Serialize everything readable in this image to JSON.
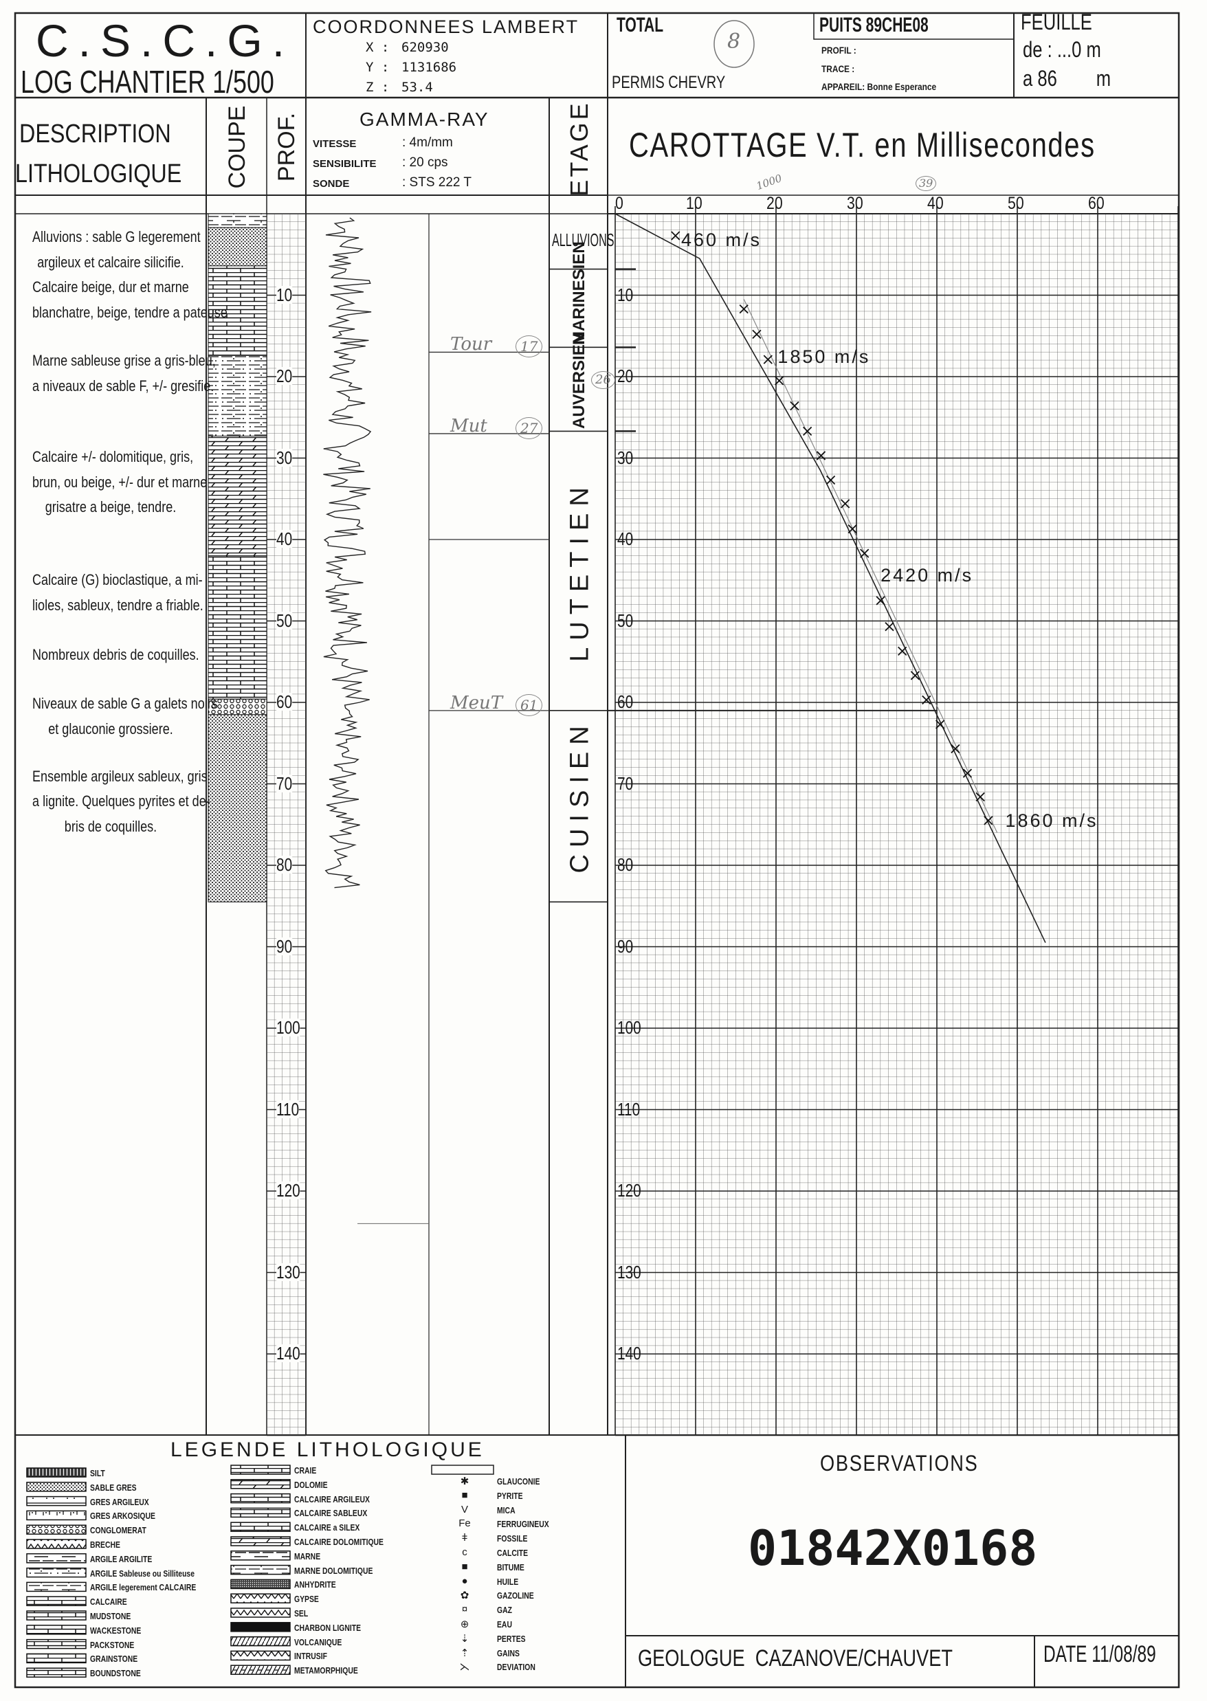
{
  "header": {
    "org": "C.S.C.G.",
    "log_title": "LOG CHANTIER 1/500",
    "coords_title": "COORDONNEES LAMBERT",
    "coords": [
      {
        "label": "X :",
        "value": "620930"
      },
      {
        "label": "Y :",
        "value": "1131686"
      },
      {
        "label": "Z :",
        "value": "53.4"
      }
    ],
    "company": "TOTAL",
    "permis": "PERMIS CHEVRY",
    "handwritten_number": "8",
    "puits": "PUITS 89CHE08",
    "profil": "PROFIL  :",
    "trace": "TRACE  :",
    "appareil": "APPAREIL: Bonne Esperance",
    "feuille": "FEUILLE",
    "feuille_de": "de : ...0 m",
    "feuille_a": "a 86        m"
  },
  "columns": {
    "description_1": "DESCRIPTION",
    "description_2": "LITHOLOGIQUE",
    "coupe": "COUPE",
    "prof": "PROF.",
    "gamma_title": "GAMMA-RAY",
    "gamma_params": [
      {
        "label": "VITESSE",
        "value": ": 4m/mm"
      },
      {
        "label": "SENSIBILITE",
        "value": ": 20 cps"
      },
      {
        "label": "SONDE",
        "value": ": STS 222  T"
      }
    ],
    "etage": "ETAGE",
    "chart_title": "CAROTTAGE V.T. en Millisecondes"
  },
  "descriptions": [
    {
      "depth": 2.8,
      "lines": [
        "Alluvions : sable G legerement",
        "argileux et calcaire silicifie.",
        "Calcaire beige, dur et marne",
        "blanchatre, beige, tendre a pateuse"
      ]
    },
    {
      "depth": 18.0,
      "lines": [
        "Marne sableuse grise a gris-bleu,",
        "a niveaux de sable F, +/- gresifie."
      ]
    },
    {
      "depth": 29.8,
      "lines": [
        "Calcaire +/- dolomitique, gris,",
        "brun, ou beige, +/- dur et marne",
        "grisatre a beige, tendre."
      ]
    },
    {
      "depth": 44.9,
      "lines": [
        "Calcaire (G) bioclastique, a mi-",
        "lioles, sableux, tendre a friable."
      ]
    },
    {
      "depth": 54.1,
      "lines": [
        "Nombreux debris de coquilles."
      ]
    },
    {
      "depth": 60.1,
      "lines": [
        "Niveaux de sable G a galets noirs",
        "et glauconie grossiere."
      ]
    },
    {
      "depth": 69.0,
      "lines": [
        "Ensemble argileux sableux, gris",
        "a lignite. Quelques pyrites et de-",
        "bris de coquilles."
      ]
    }
  ],
  "coupe": [
    {
      "top": 0,
      "base": 1.7,
      "lithology": "ARGILE legerement CALCAIRE"
    },
    {
      "top": 1.7,
      "base": 6.4,
      "lithology": "SABLE GRES"
    },
    {
      "top": 6.4,
      "base": 17.4,
      "lithology": "CALCAIRE"
    },
    {
      "top": 17.4,
      "base": 27.3,
      "lithology": "ARGILE Sableuse ou Silliteuse"
    },
    {
      "top": 27.3,
      "base": 42,
      "lithology": "CALCAIRE DOLOMITIQUE"
    },
    {
      "top": 42,
      "base": 59.6,
      "lithology": "CALCAIRE SABLEUX"
    },
    {
      "top": 59.6,
      "base": 61.5,
      "lithology": "CONGLOMERAT"
    },
    {
      "top": 61.5,
      "base": 84.5,
      "lithology": "SABLE GRES"
    }
  ],
  "etages": [
    {
      "name": "ALLUVIONS",
      "top": 0,
      "base": 6.8
    },
    {
      "name": "MARINESIEN",
      "top": 6.8,
      "base": 16.4
    },
    {
      "name": "AUVERSIEN",
      "top": 16.4,
      "base": 26.7
    },
    {
      "name": "LUTETIEN",
      "top": 26.7,
      "base": 61
    },
    {
      "name": "CUISIEN",
      "top": 61,
      "base": 84.5
    }
  ],
  "handwritten_notes": [
    {
      "text": "Tour",
      "circled": "17",
      "depth": 17
    },
    {
      "text": "Mut",
      "circled": "27",
      "depth": 27
    },
    {
      "text": "MeuT",
      "circled": "61",
      "depth": 61
    }
  ],
  "handwritten_extra": {
    "auversien_circle": "26",
    "axis_note_1": "1000",
    "axis_note_2": "39"
  },
  "depth_labels": [
    "10",
    "20",
    "30",
    "40",
    "50",
    "60",
    "70",
    "80",
    "90",
    "100",
    "110",
    "120",
    "130",
    "140"
  ],
  "chart_data": {
    "type": "scatter",
    "title": "CAROTTAGE V.T. en Millisecondes",
    "xlabel": "",
    "ylabel": "",
    "x_ticks": [
      "0",
      "10",
      "20",
      "30",
      "40",
      "50",
      "60"
    ],
    "y_ticks": [
      "10",
      "20",
      "30",
      "40",
      "50",
      "60",
      "70",
      "80",
      "90",
      "100",
      "110",
      "120",
      "130",
      "140"
    ],
    "xlim": [
      0,
      70
    ],
    "ylim": [
      0,
      150
    ],
    "y_inverted": true,
    "grid": true,
    "x_axis_position": "top",
    "points": [
      {
        "t": 7.5,
        "depth": 2.7
      },
      {
        "t": 16,
        "depth": 11.7
      },
      {
        "t": 17.6,
        "depth": 14.8
      },
      {
        "t": 19,
        "depth": 17.9
      },
      {
        "t": 20.4,
        "depth": 20.5
      },
      {
        "t": 22.3,
        "depth": 23.6
      },
      {
        "t": 23.9,
        "depth": 26.7
      },
      {
        "t": 25.6,
        "depth": 29.7
      },
      {
        "t": 26.8,
        "depth": 32.7
      },
      {
        "t": 28.6,
        "depth": 35.6
      },
      {
        "t": 29.5,
        "depth": 38.7
      },
      {
        "t": 31,
        "depth": 41.7
      },
      {
        "t": 33,
        "depth": 47.5
      },
      {
        "t": 34.1,
        "depth": 50.7
      },
      {
        "t": 35.7,
        "depth": 53.7
      },
      {
        "t": 37.3,
        "depth": 56.7
      },
      {
        "t": 38.7,
        "depth": 59.7
      },
      {
        "t": 40.4,
        "depth": 62.7
      },
      {
        "t": 42.3,
        "depth": 65.7
      },
      {
        "t": 43.8,
        "depth": 68.7
      },
      {
        "t": 45.4,
        "depth": 71.6
      },
      {
        "t": 46.4,
        "depth": 74.5
      }
    ],
    "velocity_line": [
      {
        "t": 0,
        "depth": 0
      },
      {
        "t": 10.5,
        "depth": 5.5
      },
      {
        "t": 25.5,
        "depth": 31.5
      },
      {
        "t": 53.5,
        "depth": 89.5
      }
    ],
    "reference_line_depth": 61,
    "annotations": [
      {
        "text": "460 m/s",
        "t": 8.2,
        "depth": 3.3
      },
      {
        "text": "1850 m/s",
        "t": 20.2,
        "depth": 17.6
      },
      {
        "text": "2420 m/s",
        "t": 33,
        "depth": 44.5
      },
      {
        "text": "1860 m/s",
        "t": 48.5,
        "depth": 74.6
      }
    ]
  },
  "legend": {
    "title": "LEGENDE LITHOLOGIQUE",
    "col1": [
      {
        "label": "SILT",
        "pattern": "silt"
      },
      {
        "label": "SABLE GRES",
        "pattern": "sand"
      },
      {
        "label": "GRES ARGILEUX",
        "pattern": "clayey-sand"
      },
      {
        "label": "GRES ARKOSIQUE",
        "pattern": "arkose"
      },
      {
        "label": "CONGLOMERAT",
        "pattern": "conglomerate"
      },
      {
        "label": "BRECHE",
        "pattern": "breccia"
      },
      {
        "label": "ARGILE ARGILITE",
        "pattern": "clay"
      },
      {
        "label": "ARGILE Sableuse ou Silliteuse",
        "pattern": "sandy-clay"
      },
      {
        "label": "ARGILE legerement CALCAIRE",
        "pattern": "calc-clay"
      },
      {
        "label": "CALCAIRE",
        "pattern": "limestone"
      },
      {
        "label": "MUDSTONE",
        "pattern": "limestone"
      },
      {
        "label": "WACKESTONE",
        "pattern": "limestone"
      },
      {
        "label": "PACKSTONE",
        "pattern": "limestone"
      },
      {
        "label": "GRAINSTONE",
        "pattern": "limestone"
      },
      {
        "label": "BOUNDSTONE",
        "pattern": "limestone"
      }
    ],
    "col2": [
      {
        "label": "CRAIE",
        "pattern": "limestone"
      },
      {
        "label": "DOLOMIE",
        "pattern": "dolomite"
      },
      {
        "label": "CALCAIRE ARGILEUX",
        "pattern": "limestone"
      },
      {
        "label": "CALCAIRE SABLEUX",
        "pattern": "limestone"
      },
      {
        "label": "CALCAIRE a SILEX",
        "pattern": "limestone"
      },
      {
        "label": "CALCAIRE DOLOMITIQUE",
        "pattern": "dolomite"
      },
      {
        "label": "MARNE",
        "pattern": "clay"
      },
      {
        "label": "MARNE DOLOMITIQUE",
        "pattern": "calc-clay"
      },
      {
        "label": "ANHYDRITE",
        "pattern": "anhydrite"
      },
      {
        "label": "GYPSE",
        "pattern": "breccia"
      },
      {
        "label": "SEL",
        "pattern": "breccia"
      },
      {
        "label": "CHARBON LIGNITE",
        "pattern": "coal"
      },
      {
        "label": "VOLCANIQUE",
        "pattern": "volcanic"
      },
      {
        "label": "INTRUSIF",
        "pattern": "breccia"
      },
      {
        "label": "METAMORPHIQUE",
        "pattern": "volcanic"
      }
    ],
    "col3": [
      {
        "symbol": "✱",
        "label": "GLAUCONIE"
      },
      {
        "symbol": "■",
        "label": "PYRITE"
      },
      {
        "symbol": "V",
        "label": "MICA"
      },
      {
        "symbol": "Fe",
        "label": "FERRUGINEUX"
      },
      {
        "symbol": "ǂ",
        "label": "FOSSILE"
      },
      {
        "symbol": "c",
        "label": "CALCITE"
      },
      {
        "symbol": "■",
        "label": "BITUME"
      },
      {
        "symbol": "●",
        "label": "HUILE"
      },
      {
        "symbol": "✿",
        "label": "GAZOLINE"
      },
      {
        "symbol": "¤",
        "label": "GAZ"
      },
      {
        "symbol": "⊕",
        "label": "EAU"
      },
      {
        "symbol": "⇣",
        "label": "PERTES"
      },
      {
        "symbol": "⇡",
        "label": "GAINS"
      },
      {
        "symbol": "⋋",
        "label": "DEVIATION"
      }
    ]
  },
  "observations": {
    "title": "OBSERVATIONS",
    "reference": "01842X0168"
  },
  "footer": {
    "geologue": "GEOLOGUE  CAZANOVE/CHAUVET",
    "date": "DATE 11/08/89"
  }
}
